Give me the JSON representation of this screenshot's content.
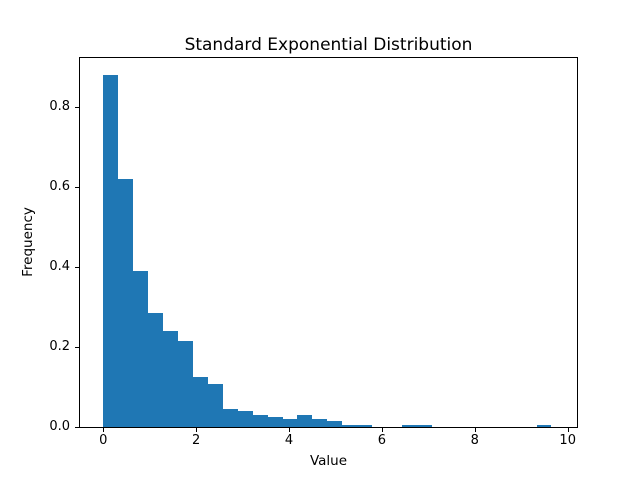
{
  "figure": {
    "background": "#ffffff"
  },
  "chart_data": {
    "type": "bar",
    "subtype": "histogram",
    "title": "Standard Exponential Distribution",
    "xlabel": "Value",
    "ylabel": "Frequency",
    "bar_color": "#1f77b4",
    "axis_color": "#000000",
    "grid": false,
    "legend": "none",
    "xlim": [
      -0.5,
      10.2
    ],
    "ylim": [
      0,
      0.922
    ],
    "x_ticks": [
      0,
      2,
      4,
      6,
      8,
      10
    ],
    "x_tick_labels": [
      "0",
      "2",
      "4",
      "6",
      "8",
      "10"
    ],
    "y_ticks": [
      0,
      0.2,
      0.4,
      0.6,
      0.8
    ],
    "y_tick_labels": [
      "0.0",
      "0.2",
      "0.4",
      "0.6",
      "0.8"
    ],
    "bins": {
      "start": 0,
      "width": 0.32167,
      "count": 30
    },
    "values": [
      0.88,
      0.62,
      0.39,
      0.285,
      0.24,
      0.215,
      0.125,
      0.108,
      0.044,
      0.039,
      0.03,
      0.024,
      0.019,
      0.029,
      0.02,
      0.015,
      0.005,
      0.005,
      0,
      0,
      0.004,
      0.004,
      0,
      0,
      0,
      0,
      0,
      0,
      0,
      0.005
    ]
  }
}
